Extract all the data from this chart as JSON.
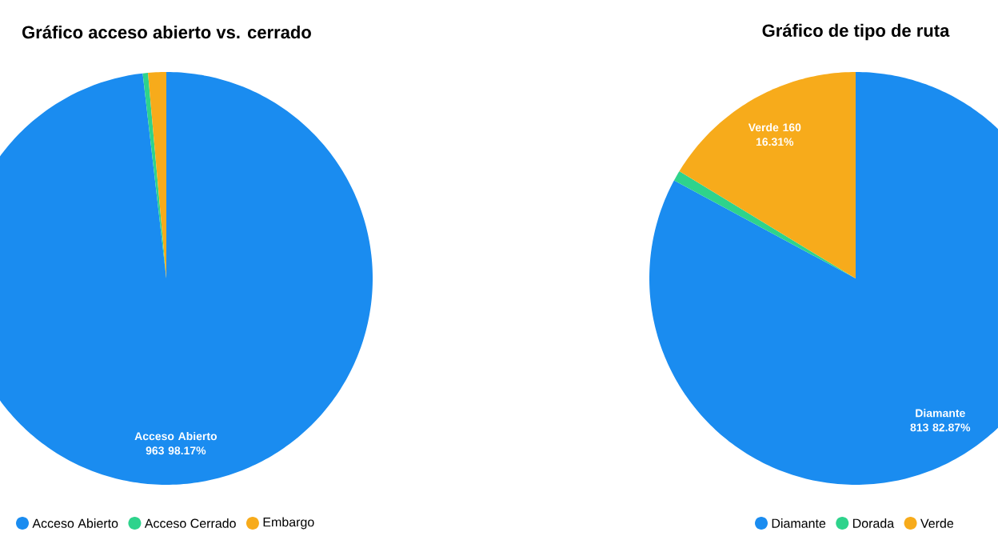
{
  "chart_data": [
    {
      "type": "pie",
      "title": "Gráfico acceso abierto vs. cerrado",
      "categories": [
        "Acceso Abierto",
        "Acceso Cerrado",
        "Embargo"
      ],
      "values": [
        98.17,
        0.41,
        1.42
      ],
      "colors": [
        "#1a8cf0",
        "#2ed38c",
        "#f7ab1b"
      ],
      "value_labels": [
        "963 98.17%",
        null,
        null
      ],
      "legend": "bottom"
    },
    {
      "type": "pie",
      "title": "Gráfico de tipo de ruta",
      "categories": [
        "Diamante",
        "Dorada",
        "Verde"
      ],
      "values": [
        82.87,
        0.82,
        16.31
      ],
      "colors": [
        "#1a8cf0",
        "#2ed38c",
        "#f7ab1b"
      ],
      "value_labels": [
        "813 82.87%",
        null,
        "160 16.31%"
      ],
      "legend": "bottom"
    }
  ]
}
